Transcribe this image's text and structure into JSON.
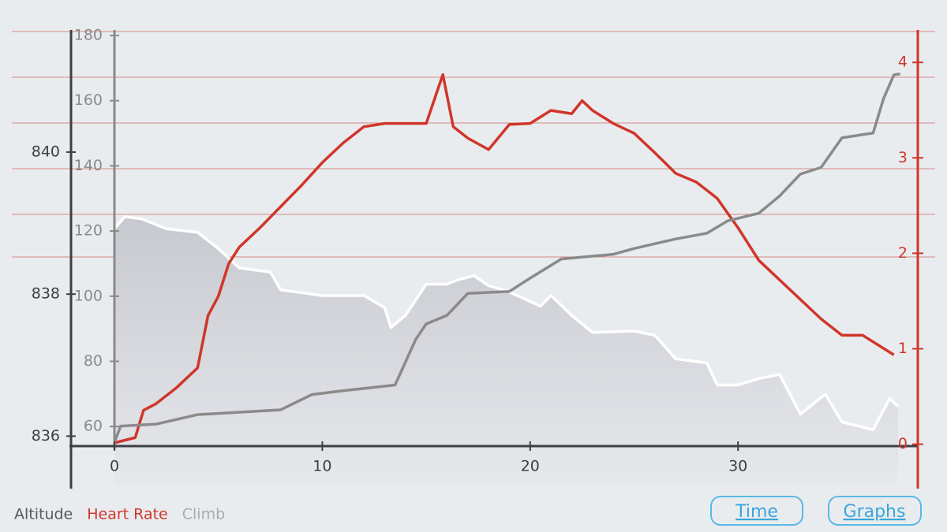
{
  "chart_data": {
    "type": "line",
    "xlim": [
      0,
      37.7
    ],
    "xticks": [
      0,
      10,
      20,
      30
    ],
    "series": [
      {
        "name": "Altitude",
        "color": "#ffffff",
        "fill": true,
        "ylim": [
          835.86,
          841.72
        ],
        "yticks": [
          836,
          838,
          840
        ],
        "x": [
          0,
          0.5,
          1.3,
          2.5,
          4,
          5,
          6,
          7.5,
          8,
          10,
          12,
          13,
          13.3,
          14,
          14.5,
          15,
          16,
          16.5,
          17.3,
          18,
          19,
          20.5,
          21,
          22,
          23,
          25,
          26,
          27,
          28.5,
          29,
          30,
          31,
          32,
          33,
          34.2,
          35,
          36.5,
          37.3,
          37.7
        ],
        "values": [
          838.92,
          839.09,
          839.06,
          838.92,
          838.87,
          838.64,
          838.37,
          838.31,
          838.06,
          837.98,
          837.98,
          837.81,
          837.53,
          837.7,
          837.92,
          838.14,
          838.14,
          838.2,
          838.26,
          838.12,
          838.03,
          837.83,
          837.98,
          837.7,
          837.46,
          837.48,
          837.42,
          837.09,
          837.03,
          836.72,
          836.72,
          836.81,
          836.87,
          836.31,
          836.59,
          836.2,
          836.09,
          836.53,
          836.42
        ]
      },
      {
        "name": "Heart Rate",
        "color": "#d0362a",
        "ylim": [
          54,
          181.7
        ],
        "yticks": [
          60,
          80,
          100,
          120,
          140,
          160,
          180
        ],
        "x": [
          0,
          1,
          1.4,
          2,
          3,
          4,
          4.5,
          5,
          5.5,
          6,
          7,
          8,
          9,
          10,
          11,
          12,
          13,
          14,
          15,
          15.8,
          16.3,
          17,
          18,
          19,
          20,
          21,
          22,
          22.5,
          23,
          24,
          25,
          26,
          27,
          28,
          29,
          30,
          31,
          32,
          33,
          34,
          35,
          36,
          37,
          37.5
        ],
        "values": [
          55,
          56.6,
          65,
          67,
          72,
          78,
          94,
          100,
          110,
          115,
          121,
          127.5,
          134,
          141,
          147,
          152,
          153,
          153,
          153,
          168,
          152,
          148.5,
          145,
          152.7,
          153,
          157,
          156,
          160,
          157,
          153,
          150,
          144,
          137.7,
          135,
          130,
          121,
          111,
          105,
          99,
          93,
          88,
          88,
          84,
          82
        ]
      },
      {
        "name": "Climb",
        "color": "#8a8a8a",
        "ylim": [
          -0.02,
          4.34
        ],
        "yticks": [
          0,
          1,
          2,
          3,
          4
        ],
        "x": [
          0,
          0.3,
          2,
          4,
          8,
          9.5,
          11,
          13.5,
          14.5,
          15,
          16,
          17,
          19,
          20,
          21.5,
          24,
          25,
          27,
          28.5,
          29.5,
          31,
          32,
          33,
          34,
          35,
          36.5,
          37,
          37.5,
          37.8
        ],
        "values": [
          0.02,
          0.19,
          0.21,
          0.31,
          0.36,
          0.52,
          0.56,
          0.62,
          1.1,
          1.26,
          1.35,
          1.58,
          1.6,
          1.74,
          1.94,
          1.99,
          2.05,
          2.15,
          2.21,
          2.34,
          2.42,
          2.6,
          2.83,
          2.9,
          3.21,
          3.26,
          3.62,
          3.87,
          3.88
        ]
      }
    ]
  },
  "buttons": [
    "Time",
    "Graphs"
  ]
}
